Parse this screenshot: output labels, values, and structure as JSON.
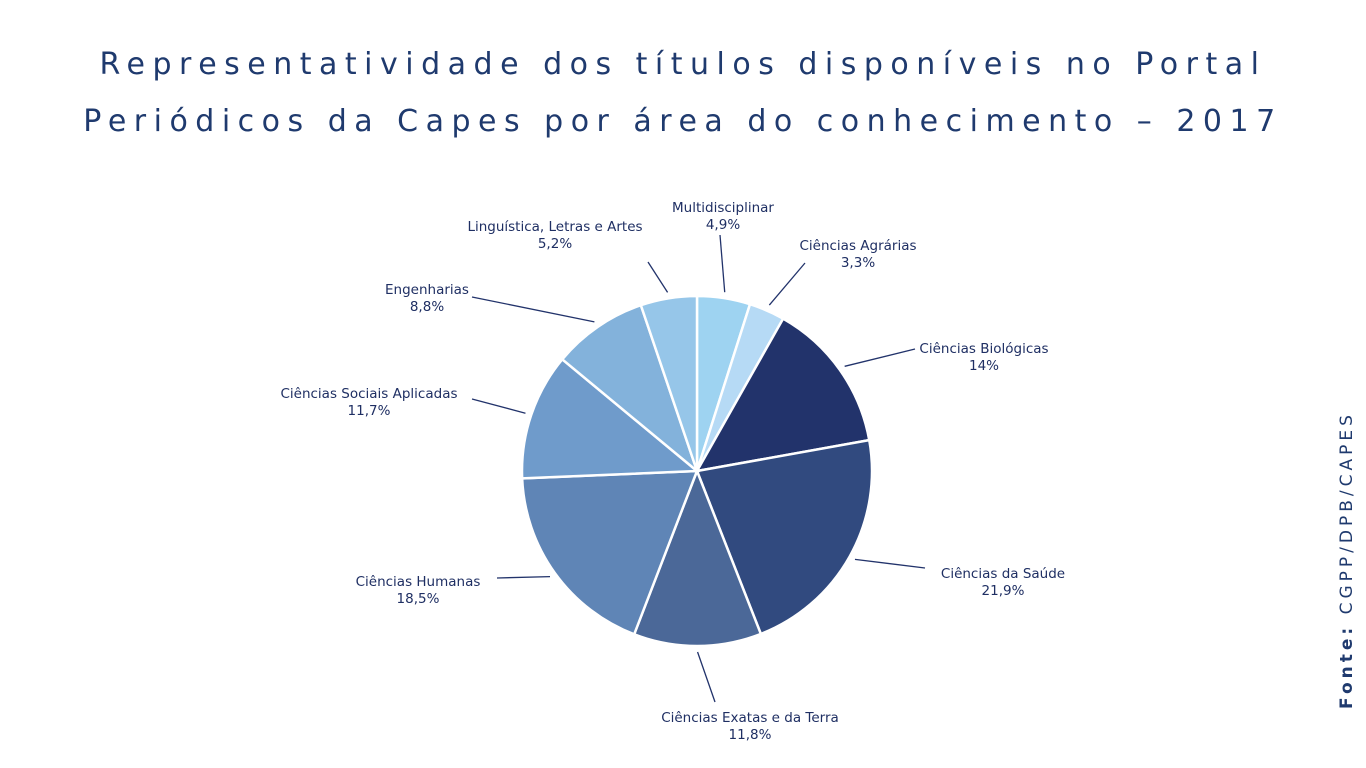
{
  "title_line1": "Representatividade dos títulos disponíveis no Portal",
  "title_line2": "Periódicos da Capes por área do conhecimento – 2017",
  "source_label": "Fonte:",
  "source_value": "CGPP/DPB/CAPES",
  "chart_data": {
    "type": "pie",
    "title": "Representatividade dos títulos disponíveis no Portal Periódicos da Capes por área do conhecimento – 2017",
    "slices": [
      {
        "label": "Multidisciplinar",
        "value": 4.9,
        "value_label": "4,9%",
        "color": "#9ed3f1"
      },
      {
        "label": "Ciências Agrárias",
        "value": 3.3,
        "value_label": "3,3%",
        "color": "#b6daf5"
      },
      {
        "label": "Ciências Biológicas",
        "value": 14,
        "value_label": "14%",
        "color": "#22336b"
      },
      {
        "label": "Ciências da Saúde",
        "value": 21.9,
        "value_label": "21,9%",
        "color": "#314a7f"
      },
      {
        "label": "Ciências Exatas e da Terra",
        "value": 11.8,
        "value_label": "11,8%",
        "color": "#4b6898"
      },
      {
        "label": "Ciências Humanas",
        "value": 18.5,
        "value_label": "18,5%",
        "color": "#5f85b6"
      },
      {
        "label": "Ciências Sociais Aplicadas",
        "value": 11.7,
        "value_label": "11,7%",
        "color": "#6f9bcb"
      },
      {
        "label": "Engenharias",
        "value": 8.8,
        "value_label": "8,8%",
        "color": "#83b2db"
      },
      {
        "label": "Linguística, Letras e Artes",
        "value": 5.2,
        "value_label": "5,2%",
        "color": "#96c6e9"
      }
    ]
  }
}
